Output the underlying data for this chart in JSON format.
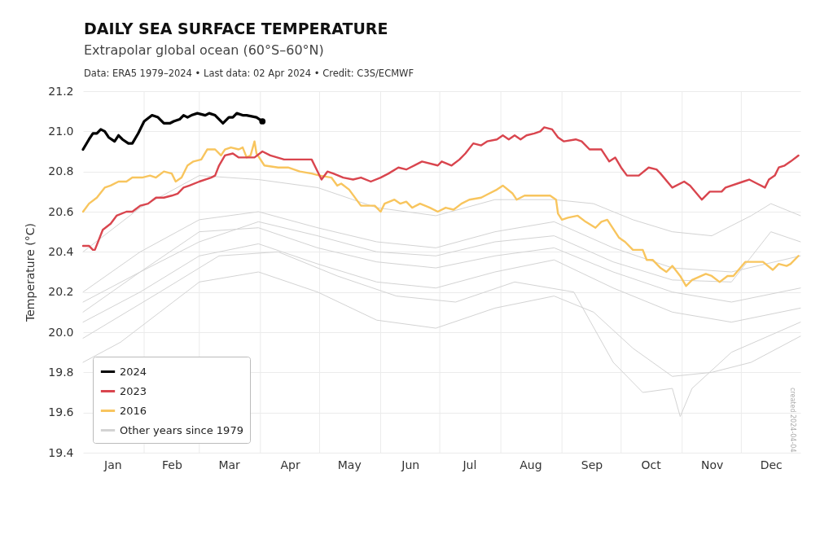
{
  "chart_data": {
    "type": "line",
    "title": "DAILY SEA SURFACE TEMPERATURE",
    "subtitle": "Extrapolar global ocean (60°S–60°N)",
    "ylabel": "Temperature (°C)",
    "annotations": [
      "Data: ERA5 1979–2024 • Last data: 02 Apr 2024 • Credit: C3S/ECMWF",
      "created 2024-04-04"
    ],
    "xlim": [
      "--01-01",
      "--12-31"
    ],
    "xticks": [
      {
        "value": "--01-16",
        "label": "Jan"
      },
      {
        "value": "--02-01",
        "label": null
      },
      {
        "value": "--02-15",
        "label": "Feb"
      },
      {
        "value": "--03-01",
        "label": null
      },
      {
        "value": "--03-16",
        "label": "Mar"
      },
      {
        "value": "--04-01",
        "label": null
      },
      {
        "value": "--04-16",
        "label": "Apr"
      },
      {
        "value": "--05-01",
        "label": null
      },
      {
        "value": "--05-16",
        "label": "May"
      },
      {
        "value": "--06-01",
        "label": null
      },
      {
        "value": "--06-16",
        "label": "Jun"
      },
      {
        "value": "--07-01",
        "label": null
      },
      {
        "value": "--07-16",
        "label": "Jul"
      },
      {
        "value": "--08-01",
        "label": null
      },
      {
        "value": "--08-16",
        "label": "Aug"
      },
      {
        "value": "--09-01",
        "label": null
      },
      {
        "value": "--09-16",
        "label": "Sep"
      },
      {
        "value": "--10-01",
        "label": null
      },
      {
        "value": "--10-16",
        "label": "Oct"
      },
      {
        "value": "--11-01",
        "label": null
      },
      {
        "value": "--11-16",
        "label": "Nov"
      },
      {
        "value": "--12-01",
        "label": null
      },
      {
        "value": "--12-16",
        "label": "Dec"
      }
    ],
    "ylim": [
      19.4,
      21.2
    ],
    "yticks": [
      19.4,
      19.6,
      19.8,
      {
        "value": 20,
        "label": "20.0"
      },
      20.2,
      20.4,
      20.6,
      20.8,
      {
        "value": 21,
        "label": "21.0"
      },
      21.2
    ],
    "grid": true,
    "legend": "bottom left",
    "series": [
      {
        "name": "2024",
        "color": "#000000",
        "x": [
          "--01-01",
          "--01-04",
          "--01-06",
          "--01-08",
          "--01-10",
          "--01-12",
          "--01-14",
          "--01-17",
          "--01-19",
          "--01-21",
          "--01-24",
          "--01-26",
          "--01-29",
          "--02-01",
          "--02-05",
          "--02-08",
          "--02-11",
          "--02-14",
          "--02-16",
          "--02-19",
          "--02-21",
          "--02-23",
          "--02-25",
          "--02-28",
          "--03-04",
          "--03-06",
          "--03-09",
          "--03-13",
          "--03-16",
          "--03-18",
          "--03-20",
          "--03-23",
          "--03-25",
          "--03-30",
          "--04-02"
        ],
        "values": [
          20.91,
          20.96,
          20.99,
          20.99,
          21.01,
          21.0,
          20.97,
          20.95,
          20.98,
          20.96,
          20.94,
          20.94,
          20.99,
          21.05,
          21.08,
          21.07,
          21.04,
          21.04,
          21.05,
          21.06,
          21.08,
          21.07,
          21.08,
          21.09,
          21.08,
          21.09,
          21.08,
          21.04,
          21.07,
          21.07,
          21.09,
          21.08,
          21.08,
          21.07,
          21.05
        ]
      },
      {
        "name": "2023",
        "color": "#d9454e",
        "x": [
          "--01-01",
          "--01-04",
          "--01-06",
          "--01-07",
          "--01-11",
          "--01-15",
          "--01-18",
          "--01-23",
          "--01-26",
          "--01-30",
          "--02-03",
          "--02-07",
          "--02-11",
          "--02-15",
          "--02-18",
          "--02-21",
          "--02-24",
          "--03-01",
          "--03-07",
          "--03-09",
          "--03-11",
          "--03-14",
          "--03-18",
          "--03-21",
          "--03-29",
          "--04-02",
          "--04-06",
          "--04-13",
          "--04-18",
          "--04-22",
          "--04-27",
          "--04-29",
          "--05-02",
          "--05-05",
          "--05-08",
          "--05-13",
          "--05-18",
          "--05-22",
          "--05-27",
          "--06-01",
          "--06-05",
          "--06-10",
          "--06-14",
          "--06-16",
          "--06-22",
          "--06-30",
          "--07-02",
          "--07-07",
          "--07-11",
          "--07-14",
          "--07-18",
          "--07-22",
          "--07-25",
          "--07-30",
          "--08-02",
          "--08-05",
          "--08-08",
          "--08-11",
          "--08-14",
          "--08-18",
          "--08-21",
          "--08-23",
          "--08-27",
          "--08-30",
          "--09-02",
          "--09-08",
          "--09-11",
          "--09-15",
          "--09-21",
          "--09-25",
          "--09-28",
          "--10-01",
          "--10-04",
          "--10-10",
          "--10-15",
          "--10-19",
          "--10-21",
          "--10-27",
          "--11-02",
          "--11-05",
          "--11-11",
          "--11-15",
          "--11-21",
          "--11-23",
          "--12-02",
          "--12-05",
          "--12-09",
          "--12-13",
          "--12-15",
          "--12-18",
          "--12-20",
          "--12-23",
          "--12-26",
          "--12-30"
        ],
        "values": [
          20.43,
          20.43,
          20.41,
          20.41,
          20.51,
          20.54,
          20.58,
          20.6,
          20.6,
          20.63,
          20.64,
          20.67,
          20.67,
          20.68,
          20.69,
          20.72,
          20.73,
          20.75,
          20.77,
          20.78,
          20.83,
          20.88,
          20.89,
          20.87,
          20.87,
          20.9,
          20.88,
          20.86,
          20.86,
          20.86,
          20.86,
          20.82,
          20.76,
          20.8,
          20.79,
          20.77,
          20.76,
          20.77,
          20.75,
          20.77,
          20.79,
          20.82,
          20.81,
          20.82,
          20.85,
          20.83,
          20.85,
          20.83,
          20.86,
          20.89,
          20.94,
          20.93,
          20.95,
          20.96,
          20.98,
          20.96,
          20.98,
          20.96,
          20.98,
          20.99,
          21.0,
          21.02,
          21.01,
          20.97,
          20.95,
          20.96,
          20.95,
          20.91,
          20.91,
          20.85,
          20.87,
          20.82,
          20.78,
          20.78,
          20.82,
          20.81,
          20.79,
          20.72,
          20.75,
          20.73,
          20.66,
          20.7,
          20.7,
          20.72,
          20.75,
          20.76,
          20.74,
          20.72,
          20.76,
          20.78,
          20.82,
          20.83,
          20.85,
          20.88
        ]
      },
      {
        "name": "2016",
        "color": "#f8c55e",
        "x": [
          "--01-01",
          "--01-04",
          "--01-08",
          "--01-12",
          "--01-15",
          "--01-19",
          "--01-23",
          "--01-26",
          "--01-31",
          "--02-04",
          "--02-07",
          "--02-11",
          "--02-15",
          "--02-17",
          "--02-20",
          "--02-23",
          "--02-26",
          "--03-02",
          "--03-05",
          "--03-09",
          "--03-12",
          "--03-14",
          "--03-17",
          "--03-21",
          "--03-23",
          "--03-25",
          "--03-27",
          "--03-29",
          "--03-30",
          "--04-03",
          "--04-10",
          "--04-15",
          "--04-21",
          "--04-27",
          "--05-01",
          "--05-07",
          "--05-10",
          "--05-12",
          "--05-16",
          "--05-22",
          "--05-29",
          "--06-01",
          "--06-03",
          "--06-08",
          "--06-11",
          "--06-14",
          "--06-17",
          "--06-21",
          "--06-26",
          "--06-30",
          "--07-04",
          "--07-08",
          "--07-12",
          "--07-16",
          "--07-22",
          "--07-26",
          "--07-30",
          "--08-02",
          "--08-07",
          "--08-09",
          "--08-13",
          "--08-21",
          "--08-26",
          "--08-29",
          "--08-30",
          "--09-01",
          "--09-04",
          "--09-09",
          "--09-13",
          "--09-18",
          "--09-21",
          "--09-24",
          "--09-30",
          "--10-03",
          "--10-07",
          "--10-12",
          "--10-14",
          "--10-17",
          "--10-21",
          "--10-24",
          "--10-27",
          "--10-31",
          "--11-03",
          "--11-06",
          "--11-13",
          "--11-16",
          "--11-20",
          "--11-24",
          "--11-27",
          "--12-03",
          "--12-07",
          "--12-12",
          "--12-17",
          "--12-20",
          "--12-24",
          "--12-26",
          "--12-30"
        ],
        "values": [
          20.6,
          20.64,
          20.67,
          20.72,
          20.73,
          20.75,
          20.75,
          20.77,
          20.77,
          20.78,
          20.77,
          20.8,
          20.79,
          20.75,
          20.77,
          20.83,
          20.85,
          20.86,
          20.91,
          20.91,
          20.88,
          20.91,
          20.92,
          20.91,
          20.92,
          20.87,
          20.88,
          20.95,
          20.89,
          20.83,
          20.82,
          20.82,
          20.8,
          20.79,
          20.78,
          20.77,
          20.73,
          20.74,
          20.71,
          20.63,
          20.63,
          20.6,
          20.64,
          20.66,
          20.64,
          20.65,
          20.62,
          20.64,
          20.62,
          20.6,
          20.62,
          20.61,
          20.64,
          20.66,
          20.67,
          20.69,
          20.71,
          20.73,
          20.69,
          20.66,
          20.68,
          20.68,
          20.68,
          20.66,
          20.59,
          20.56,
          20.57,
          20.58,
          20.55,
          20.52,
          20.55,
          20.56,
          20.47,
          20.45,
          20.41,
          20.41,
          20.36,
          20.36,
          20.32,
          20.3,
          20.33,
          20.28,
          20.23,
          20.26,
          20.29,
          20.28,
          20.25,
          20.28,
          20.28,
          20.35,
          20.35,
          20.35,
          20.31,
          20.34,
          20.33,
          20.34,
          20.38
        ]
      },
      {
        "name": "Other years since 1979",
        "color": "#d3d3d3",
        "x": [
          "--01-01",
          "--01-30",
          "--03-01",
          "--03-31",
          "--04-30",
          "--05-30",
          "--06-29",
          "--07-29",
          "--08-28",
          "--09-17",
          "--10-07",
          "--10-27",
          "--11-16",
          "--12-06",
          "--12-16",
          "--12-31"
        ],
        "values": [
          20.4,
          20.62,
          20.78,
          20.76,
          20.72,
          20.62,
          20.58,
          20.66,
          20.66,
          20.64,
          20.56,
          20.5,
          20.48,
          20.58,
          20.64,
          20.58
        ]
      },
      {
        "color": "#d3d3d3",
        "x": [
          "--01-01",
          "--01-30",
          "--03-01",
          "--03-31",
          "--04-30",
          "--05-30",
          "--06-29",
          "--07-29",
          "--08-28",
          "--09-27",
          "--10-27",
          "--11-26",
          "--12-31"
        ],
        "values": [
          20.2,
          20.4,
          20.56,
          20.6,
          20.52,
          20.45,
          20.42,
          20.5,
          20.55,
          20.42,
          20.32,
          20.3,
          20.38
        ]
      },
      {
        "color": "#d3d3d3",
        "x": [
          "--01-01",
          "--01-30",
          "--03-01",
          "--03-31",
          "--04-30",
          "--05-30",
          "--06-29",
          "--07-29",
          "--08-28",
          "--09-27",
          "--10-27",
          "--11-26",
          "--12-16",
          "--12-31"
        ],
        "values": [
          20.15,
          20.3,
          20.45,
          20.55,
          20.48,
          20.4,
          20.38,
          20.45,
          20.48,
          20.35,
          20.26,
          20.25,
          20.5,
          20.45
        ]
      },
      {
        "color": "#d3d3d3",
        "x": [
          "--01-01",
          "--01-30",
          "--03-01",
          "--03-31",
          "--04-30",
          "--05-30",
          "--06-29",
          "--07-29",
          "--08-28",
          "--09-27",
          "--10-27",
          "--11-26",
          "--12-31"
        ],
        "values": [
          20.1,
          20.3,
          20.5,
          20.52,
          20.42,
          20.35,
          20.32,
          20.38,
          20.42,
          20.3,
          20.2,
          20.15,
          20.22
        ]
      },
      {
        "color": "#d3d3d3",
        "x": [
          "--01-01",
          "--01-30",
          "--03-01",
          "--03-31",
          "--04-30",
          "--05-30",
          "--06-29",
          "--07-29",
          "--08-28",
          "--09-27",
          "--10-27",
          "--11-26",
          "--12-31"
        ],
        "values": [
          20.05,
          20.2,
          20.38,
          20.44,
          20.34,
          20.25,
          20.22,
          20.3,
          20.36,
          20.22,
          20.1,
          20.05,
          20.12
        ]
      },
      {
        "color": "#d3d3d3",
        "x": [
          "--01-01",
          "--02-09",
          "--03-11",
          "--04-10",
          "--05-10",
          "--06-09",
          "--07-09",
          "--08-08",
          "--09-07",
          "--09-27",
          "--10-12",
          "--10-27",
          "--10-31",
          "--11-06",
          "--11-26",
          "--12-31"
        ],
        "values": [
          19.97,
          20.2,
          20.38,
          20.4,
          20.28,
          20.18,
          20.15,
          20.25,
          20.2,
          19.85,
          19.7,
          19.72,
          19.58,
          19.72,
          19.9,
          20.05
        ]
      },
      {
        "color": "#d3d3d3",
        "x": [
          "--01-01",
          "--01-20",
          "--02-09",
          "--03-01",
          "--03-31",
          "--04-30",
          "--05-30",
          "--06-29",
          "--07-29",
          "--08-28",
          "--09-17",
          "--10-07",
          "--10-27",
          "--11-16",
          "--12-06",
          "--12-31"
        ],
        "values": [
          19.85,
          19.95,
          20.1,
          20.25,
          20.3,
          20.2,
          20.06,
          20.02,
          20.12,
          20.18,
          20.1,
          19.92,
          19.78,
          19.8,
          19.85,
          19.98
        ]
      },
      {
        "type": "scatter",
        "color": "#000000",
        "x": [
          "--04-02"
        ],
        "values": [
          21.05
        ]
      }
    ]
  }
}
